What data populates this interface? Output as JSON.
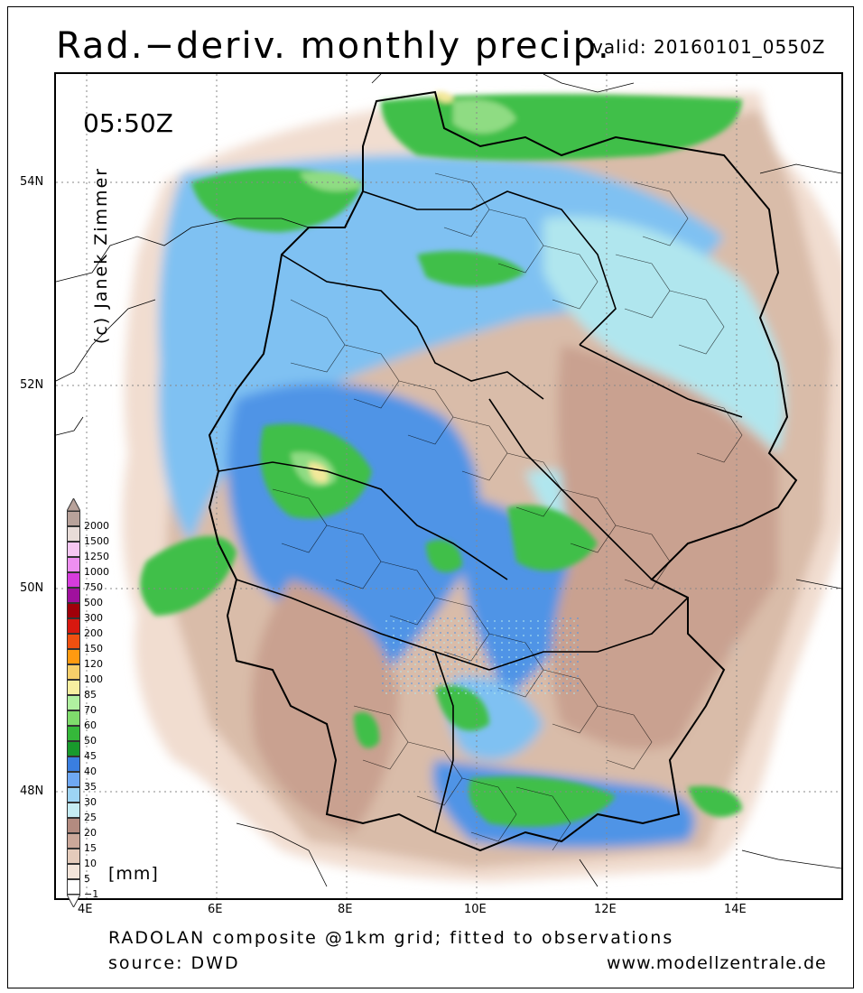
{
  "header": {
    "title": "Rad.−deriv. monthly precip.",
    "valid": "valid: 20160101_0550Z"
  },
  "map": {
    "time": "05:50Z",
    "copyright": "(c) Janek Zimmer",
    "lat_labels": [
      "54N",
      "52N",
      "50N",
      "48N"
    ],
    "lon_labels": [
      "4E",
      "6E",
      "8E",
      "10E",
      "12E",
      "14E"
    ],
    "colors": {
      "very_low": "#f3e2d6",
      "low": "#d9bca9",
      "mid_low": "#b88f7f",
      "cyan": "#b0e6ee",
      "light_blue": "#7fc1f2",
      "blue": "#4f94e6",
      "green_light": "#8fdc83",
      "green": "#3fbf4a",
      "green_dark": "#1f9a2e",
      "yellow": "#f3e89a"
    }
  },
  "legend": {
    "unit": "[mm]",
    "levels": [
      "2000",
      "1500",
      "1250",
      "1000",
      "750",
      "500",
      "300",
      "200",
      "150",
      "120",
      "100",
      "85",
      "70",
      "60",
      "50",
      "45",
      "40",
      "35",
      "30",
      "25",
      "20",
      "15",
      "10",
      "5",
      "−1"
    ],
    "colors": [
      "#b8a29a",
      "#e8dcd8",
      "#f6c7f2",
      "#ee8ff0",
      "#d63cdc",
      "#a0109e",
      "#a0000a",
      "#d8180f",
      "#f05010",
      "#ff9a10",
      "#f7cf6a",
      "#f7efa0",
      "#b0f0a0",
      "#7fdc6c",
      "#35b83a",
      "#199a2c",
      "#3a7ee0",
      "#6fa8f3",
      "#9dd4f5",
      "#c5ecf3",
      "#b38b80",
      "#cba89a",
      "#e4cbbb",
      "#f3e5da",
      "#ffffff"
    ]
  },
  "footer": {
    "line1": "RADOLAN composite @1km grid; fitted to observations",
    "line2": "source: DWD",
    "website": "www.modellzentrale.de"
  }
}
